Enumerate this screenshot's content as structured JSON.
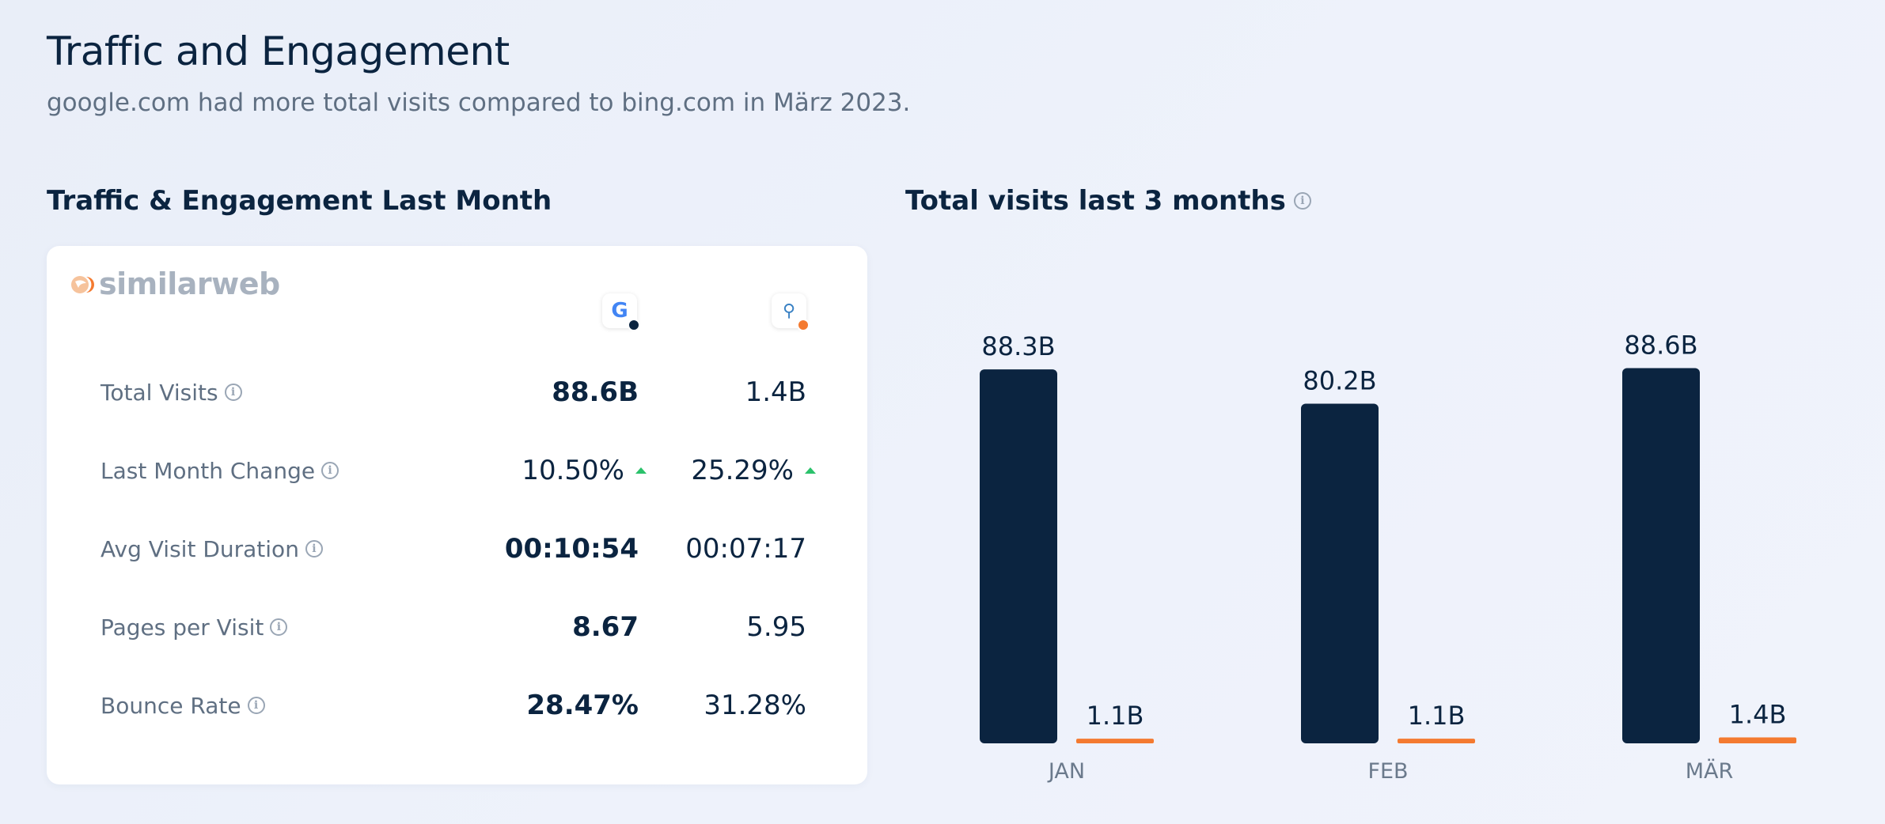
{
  "header": {
    "title": "Traffic and Engagement",
    "subtitle": "google.com had more total visits compared to bing.com in März 2023."
  },
  "sections": {
    "left_title": "Traffic & Engagement Last Month",
    "right_title": "Total visits last 3 months"
  },
  "card": {
    "brand": "similarweb",
    "sites": [
      {
        "icon": "google-icon",
        "letter": "G",
        "dot_color": "#0b2440"
      },
      {
        "icon": "bing-search-icon",
        "letter": "🔍",
        "dot_color": "#f47a30"
      }
    ],
    "metrics": [
      {
        "label": "Total Visits",
        "google": "88.6B",
        "bing": "1.4B"
      },
      {
        "label": "Last Month Change",
        "google": "10.50%",
        "bing": "25.29%"
      },
      {
        "label": "Avg Visit Duration",
        "google": "00:10:54",
        "bing": "00:07:17"
      },
      {
        "label": "Pages per Visit",
        "google": "8.67",
        "bing": "5.95"
      },
      {
        "label": "Bounce Rate",
        "google": "28.47%",
        "bing": "31.28%"
      }
    ]
  },
  "colors": {
    "google": "#0b2440",
    "bing": "#f47a30",
    "positive": "#2bc26b"
  },
  "chart_data": {
    "type": "bar",
    "categories": [
      "JAN",
      "FEB",
      "MÄR"
    ],
    "series": [
      {
        "values": [
          88.3,
          80.2,
          88.6
        ],
        "labels": [
          "88.3B",
          "80.2B",
          "88.6B"
        ],
        "color": "#0b2440"
      },
      {
        "values": [
          1.1,
          1.1,
          1.4
        ],
        "labels": [
          "1.1B",
          "1.1B",
          "1.4B"
        ],
        "color": "#f47a30"
      }
    ],
    "title": "Total visits last 3 months",
    "ylim": [
      0,
      90
    ]
  }
}
